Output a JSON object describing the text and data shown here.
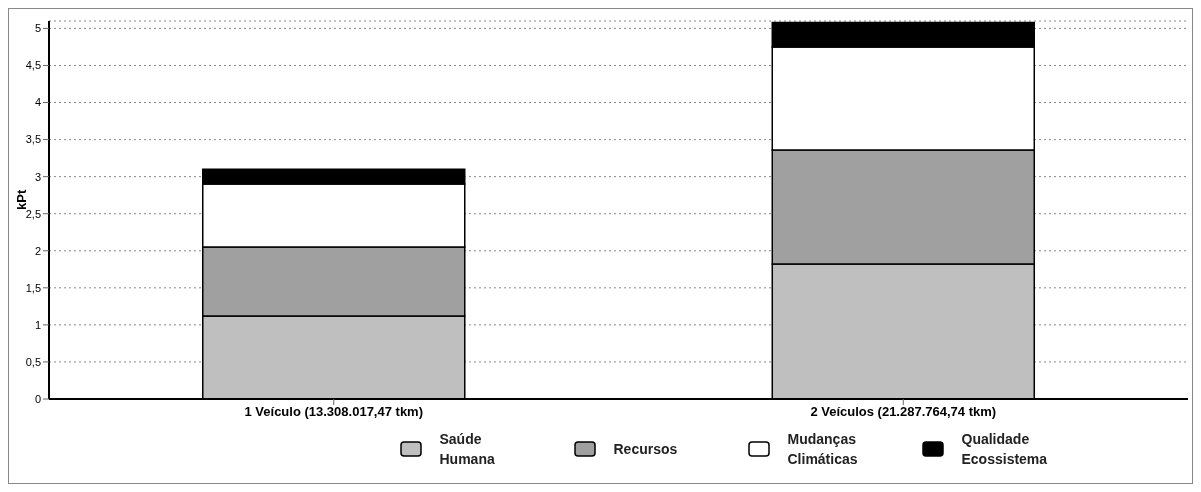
{
  "chart_data": {
    "type": "bar",
    "stacked": true,
    "ylabel": "kPt",
    "categories": [
      "1 Veículo (13.308.017,47 tkm)",
      "2 Veículos (21.287.764,74 tkm)"
    ],
    "series": [
      {
        "name": "Saúde Humana",
        "color": "#bfbfbf",
        "values": [
          1.12,
          1.82
        ]
      },
      {
        "name": "Recursos",
        "color": "#a0a0a0",
        "values": [
          0.93,
          1.54
        ]
      },
      {
        "name": "Mudanças Climáticas",
        "color": "#ffffff",
        "values": [
          0.85,
          1.39
        ]
      },
      {
        "name": "Qualidade Ecossistema",
        "color": "#000000",
        "values": [
          0.2,
          0.33
        ]
      }
    ],
    "ylim": [
      0,
      5.1
    ],
    "yticks": [
      0,
      {
        "value": 0.5,
        "label": "0,5"
      },
      1,
      {
        "value": 1.5,
        "label": "1,5"
      },
      2,
      {
        "value": 2.5,
        "label": "2,5"
      },
      3,
      {
        "value": 3.5,
        "label": "3,5"
      },
      4,
      {
        "value": 4.5,
        "label": "4,5"
      },
      5
    ],
    "grid": "y",
    "legend": "bottom"
  }
}
